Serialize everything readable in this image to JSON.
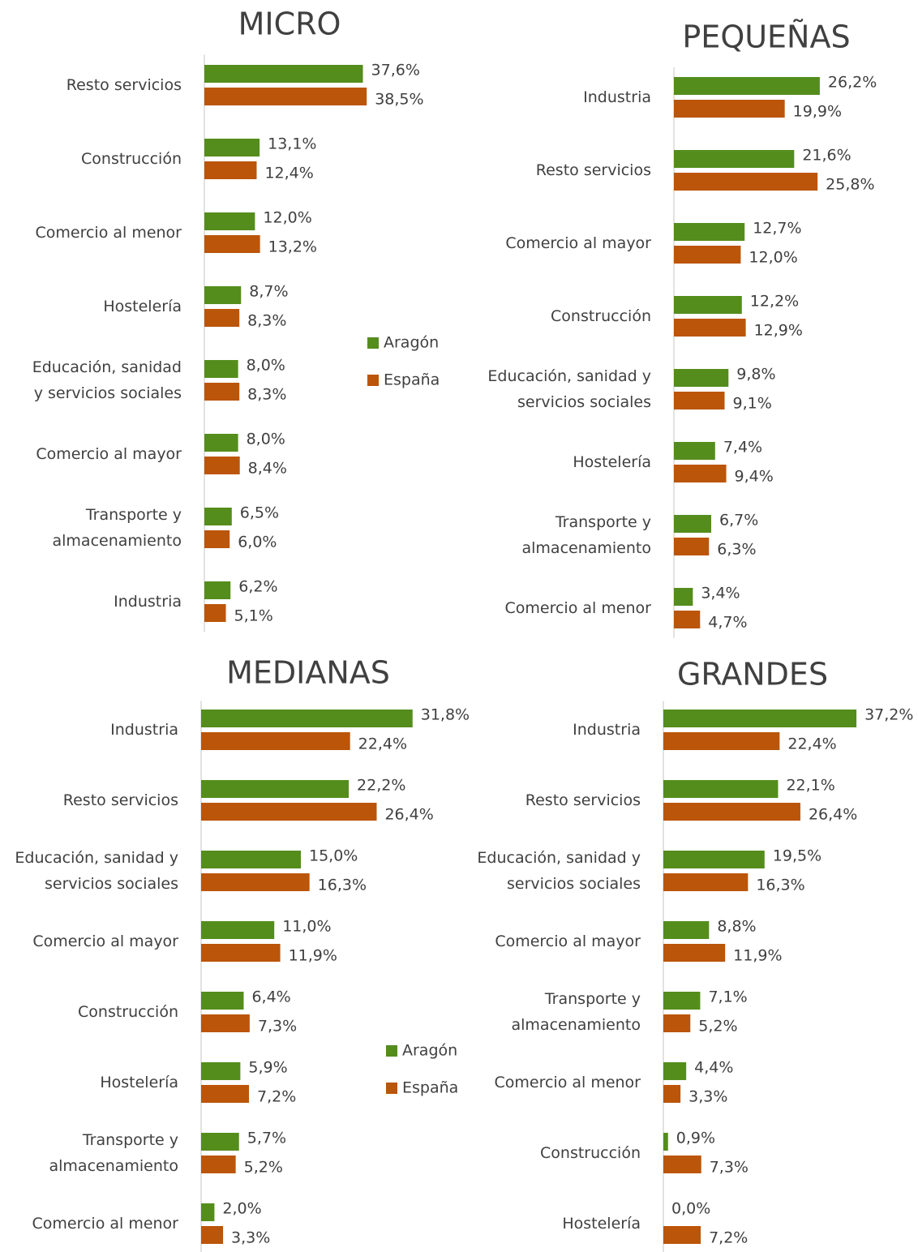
{
  "chart_data": [
    {
      "type": "bar",
      "orientation": "horizontal",
      "title": "MICRO",
      "categories": [
        "Resto servicios",
        "Construcción",
        "Comercio al menor",
        "Hostelería",
        "Educación, sanidad\ny servicios sociales",
        "Comercio al mayor",
        "Transporte y\nalmacenamiento",
        "Industria"
      ],
      "series": [
        {
          "name": "Aragón",
          "color": "#548d1c",
          "values": [
            37.6,
            13.1,
            12.0,
            8.7,
            8.0,
            8.0,
            6.5,
            6.2
          ],
          "value_labels": [
            "37,6%",
            "13,1%",
            "12,0%",
            "8,7%",
            "8,0%",
            "8,0%",
            "6,5%",
            "6,2%"
          ]
        },
        {
          "name": "España",
          "color": "#bb5509",
          "values": [
            38.5,
            12.4,
            13.2,
            8.3,
            8.3,
            8.4,
            6.0,
            5.1
          ],
          "value_labels": [
            "38,5%",
            "12,4%",
            "13,2%",
            "8,3%",
            "8,3%",
            "8,4%",
            "6,0%",
            "5,1%"
          ]
        }
      ],
      "xlim": [
        0,
        40
      ]
    },
    {
      "type": "bar",
      "orientation": "horizontal",
      "title": "PEQUEÑAS",
      "categories": [
        "Industria",
        "Resto servicios",
        "Comercio al mayor",
        "Construcción",
        "Educación, sanidad y\nservicios sociales",
        "Hostelería",
        "Transporte y\nalmacenamiento",
        "Comercio al menor"
      ],
      "series": [
        {
          "color": "#548d1c",
          "values": [
            26.2,
            21.6,
            12.7,
            12.2,
            9.8,
            7.4,
            6.7,
            3.4
          ],
          "value_labels": [
            "26,2%",
            "21,6%",
            "12,7%",
            "12,2%",
            "9,8%",
            "7,4%",
            "6,7%",
            "3,4%"
          ]
        },
        {
          "color": "#bb5509",
          "values": [
            19.9,
            25.8,
            12.0,
            12.9,
            9.1,
            9.4,
            6.3,
            4.7
          ],
          "value_labels": [
            "19,9%",
            "25,8%",
            "12,0%",
            "12,9%",
            "9,1%",
            "9,4%",
            "6,3%",
            "4,7%"
          ]
        }
      ],
      "xlim": [
        0,
        30
      ]
    },
    {
      "type": "bar",
      "orientation": "horizontal",
      "title": "MEDIANAS",
      "categories": [
        "Industria",
        "Resto servicios",
        "Educación, sanidad y\nservicios sociales",
        "Comercio al mayor",
        "Construcción",
        "Hostelería",
        "Transporte y\nalmacenamiento",
        "Comercio al menor"
      ],
      "series": [
        {
          "name": "Aragón",
          "color": "#548d1c",
          "values": [
            31.8,
            22.2,
            15.0,
            11.0,
            6.4,
            5.9,
            5.7,
            2.0
          ],
          "value_labels": [
            "31,8%",
            "22,2%",
            "15,0%",
            "11,0%",
            "6,4%",
            "5,9%",
            "5,7%",
            "2,0%"
          ]
        },
        {
          "name": "España",
          "color": "#bb5509",
          "values": [
            22.4,
            26.4,
            16.3,
            11.9,
            7.3,
            7.2,
            5.2,
            3.3
          ],
          "value_labels": [
            "22,4%",
            "26,4%",
            "16,3%",
            "11,9%",
            "7,3%",
            "7,2%",
            "5,2%",
            "3,3%"
          ]
        }
      ],
      "xlim": [
        0,
        35
      ]
    },
    {
      "type": "bar",
      "orientation": "horizontal",
      "title": "GRANDES",
      "categories": [
        "Industria",
        "Resto servicios",
        "Educación, sanidad y\nservicios sociales",
        "Comercio al mayor",
        "Transporte y\nalmacenamiento",
        "Comercio al menor",
        "Construcción",
        "Hostelería"
      ],
      "series": [
        {
          "color": "#548d1c",
          "values": [
            37.2,
            22.1,
            19.5,
            8.8,
            7.1,
            4.4,
            0.9,
            0.0
          ],
          "value_labels": [
            "37,2%",
            "22,1%",
            "19,5%",
            "8,8%",
            "7,1%",
            "4,4%",
            "0,9%",
            "0,0%"
          ]
        },
        {
          "color": "#bb5509",
          "values": [
            22.4,
            26.4,
            16.3,
            11.9,
            5.2,
            3.3,
            7.3,
            7.2
          ],
          "value_labels": [
            "22,4%",
            "26,4%",
            "16,3%",
            "11,9%",
            "5,2%",
            "3,3%",
            "7,3%",
            "7,2%"
          ]
        }
      ],
      "xlim": [
        0,
        40
      ]
    }
  ]
}
